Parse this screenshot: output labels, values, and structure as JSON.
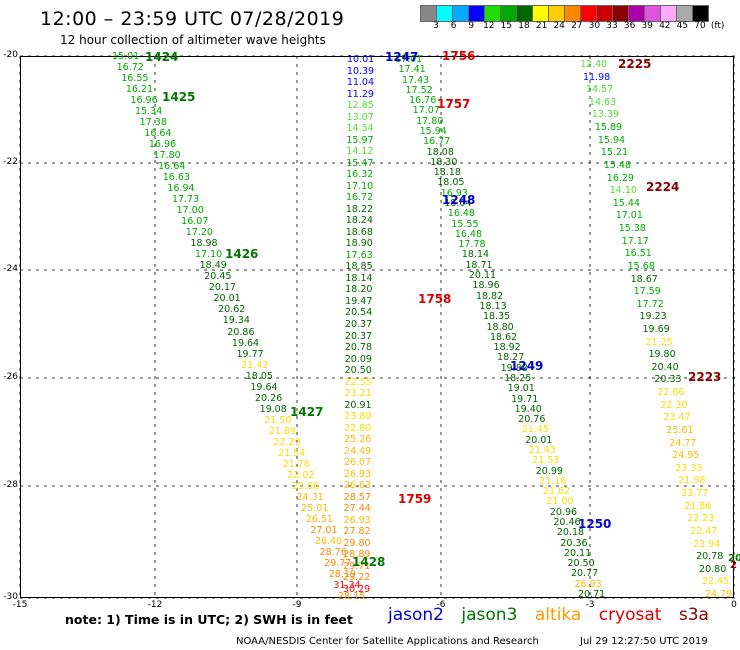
{
  "title": "12:00 – 23:59 UTC 07/28/2019",
  "subtitle": "12 hour collection of altimeter wave heights",
  "scale": {
    "colors": [
      "#888888",
      "#00ffff",
      "#00aaff",
      "#0000ff",
      "#22dd00",
      "#00aa00",
      "#006600",
      "#ffff00",
      "#ffcc00",
      "#ff8800",
      "#ff0000",
      "#cc0000",
      "#880000",
      "#aa00aa",
      "#dd55dd",
      "#ffaaff",
      "#aaaaaa",
      "#000000"
    ],
    "labels": [
      "3",
      "6",
      "9",
      "12",
      "15",
      "18",
      "21",
      "24",
      "27",
      "30",
      "33",
      "36",
      "39",
      "42",
      "45",
      "70",
      "(ft)"
    ]
  },
  "axes": {
    "lat": [
      "-20",
      "-22",
      "-24",
      "-26",
      "-28",
      "-30"
    ],
    "lon": [
      "-15",
      "-12",
      "-9",
      "-6",
      "-3",
      "0"
    ]
  },
  "colors": {
    "jason2": "#0000cc",
    "jason3": "#007700",
    "altika": "#ff9900",
    "cryosat": "#dd0000",
    "s3a": "#880000"
  },
  "passes": [
    {
      "id": "1424",
      "sat": "jason3"
    },
    {
      "id": "1425",
      "sat": "jason3"
    },
    {
      "id": "1426",
      "sat": "jason3"
    },
    {
      "id": "1427",
      "sat": "jason3"
    },
    {
      "id": "1428",
      "sat": "jason3"
    },
    {
      "id": "1247",
      "sat": "jason2"
    },
    {
      "id": "1248",
      "sat": "jason2"
    },
    {
      "id": "1249",
      "sat": "jason2"
    },
    {
      "id": "1250",
      "sat": "jason2"
    },
    {
      "id": "1756",
      "sat": "cryosat"
    },
    {
      "id": "1757",
      "sat": "cryosat"
    },
    {
      "id": "1758",
      "sat": "cryosat"
    },
    {
      "id": "1759",
      "sat": "cryosat"
    },
    {
      "id": "2225",
      "sat": "s3a"
    },
    {
      "id": "2224",
      "sat": "s3a"
    },
    {
      "id": "2223",
      "sat": "s3a"
    }
  ],
  "tracks": [
    {
      "name": "1424",
      "values": [
        "15.01",
        "16.72",
        "16.55",
        "16.21",
        "16.96",
        "15.34",
        "17.38",
        "16.64",
        "16.96",
        "17.80",
        "16.64",
        "16.63",
        "16.94",
        "17.73",
        "17.00",
        "16.07",
        "17.20",
        "18.98",
        "17.10",
        "18.49",
        "20.45",
        "20.17",
        "20.01",
        "20.62",
        "19.34",
        "20.86",
        "19.64",
        "19.77",
        "21.42",
        "18.05",
        "19.64",
        "20.26",
        "19.08",
        "21.50",
        "21.89",
        "22.29",
        "21.54",
        "21.76",
        "22.02",
        "22.66",
        "24.31",
        "25.01",
        "26.51",
        "27.01",
        "26.40",
        "28.76",
        "29.77",
        "28.19",
        "31.34",
        "28.15"
      ]
    },
    {
      "name": "1247",
      "values": [
        "10.01",
        "10.39",
        "11.04",
        "11.29",
        "12.85",
        "13.07",
        "14.54",
        "15.97",
        "14.12",
        "15.47",
        "16.32",
        "17.10",
        "16.72",
        "18.22",
        "18.24",
        "18.68",
        "18.90",
        "17.63",
        "18.85",
        "18.14",
        "18.20",
        "19.47",
        "20.54",
        "20.37",
        "20.37",
        "20.78",
        "20.09",
        "20.50",
        "22.55",
        "23.21",
        "20.91",
        "23.80",
        "22.80",
        "25.26",
        "24.49",
        "26.07",
        "26.93",
        "26.63",
        "28.57",
        "27.44",
        "26.93",
        "27.82",
        "29.80",
        "28.89",
        "29.71",
        "29.22",
        "30.29"
      ]
    },
    {
      "name": "1756",
      "values": [
        "17.01",
        "17.41",
        "17.43",
        "17.52",
        "16.76",
        "17.07",
        "17.80",
        "15.94",
        "16.77",
        "18.08",
        "18.30",
        "18.18",
        "18.05",
        "16.93",
        "18.04",
        "16.48",
        "15.55",
        "16.48",
        "17.78",
        "18.14",
        "18.71",
        "20.11",
        "18.96",
        "18.82",
        "18.13",
        "18.35",
        "18.80",
        "18.62",
        "18.92",
        "18.27",
        "19.88",
        "18.25",
        "19.01",
        "19.71",
        "19.40",
        "20.76",
        "21.45",
        "20.01",
        "21.43",
        "21.53",
        "20.99",
        "21.16",
        "21.62",
        "21.00",
        "20.96",
        "20.46",
        "20.18",
        "20.36",
        "20.11",
        "20.50",
        "20.77",
        "26.93",
        "20.71"
      ]
    },
    {
      "name": "2225",
      "values": [
        "12.40",
        "11.98",
        "14.57",
        "14.63",
        "13.39",
        "15.89",
        "15.94",
        "15.21",
        "15.48",
        "16.29",
        "14.10",
        "15.44",
        "17.01",
        "15.38",
        "17.17",
        "16.51",
        "15.68",
        "18.67",
        "17.59",
        "17.72",
        "19.23",
        "19.69",
        "21.25",
        "19.80",
        "20.40",
        "20.33",
        "22.66",
        "22.30",
        "23.47",
        "25.61",
        "24.77",
        "24.95",
        "23.33",
        "21.98",
        "23.77",
        "21.86",
        "22.23",
        "22.47",
        "23.94",
        "20.78",
        "20.80",
        "22.45",
        "24.79"
      ]
    }
  ],
  "note": "note: 1) Time is in UTC; 2) SWH is in feet",
  "legend": {
    "jason2": "jason2",
    "jason3": "jason3",
    "altika": "altika",
    "cryosat": "cryosat",
    "s3a": "s3a"
  },
  "credit": "NOAA/NESDIS Center for Satellite Applications and Research",
  "stamp": "Jul 29 12:27:50 UTC 2019",
  "extra_edge": [
    "20",
    "2"
  ]
}
